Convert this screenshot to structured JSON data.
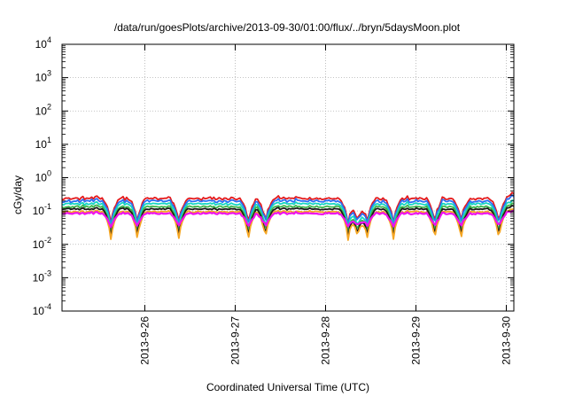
{
  "chart_data": {
    "type": "line",
    "title": "/data/run/goesPlots/archive/2013-09-30/01:00/flux/../bryn/5daysMoon.plot",
    "xlabel": "Coordinated Universal Time (UTC)",
    "ylabel": "cGy/day",
    "y_scale": "log",
    "ylim_exponents": [
      -4,
      4
    ],
    "y_tick_base": "10",
    "y_tick_exponents": [
      "-4",
      "-3",
      "-2",
      "-1",
      "0",
      "1",
      "2",
      "3",
      "4"
    ],
    "x_range_days": [
      "2013-09-25T02:00",
      "2013-09-30T02:00"
    ],
    "x_tick_labels": [
      "2013-9-26",
      "2013-9-27",
      "2013-9-28",
      "2013-9-29",
      "2013-9-30"
    ],
    "grid": true,
    "legend": "none",
    "series": [
      {
        "color": "#e41a1c",
        "base": 0.24,
        "amp": 0.3,
        "dip_depth": 0.1
      },
      {
        "color": "#2c6ef2",
        "base": 0.2,
        "amp": 0.3,
        "dip_depth": 0.12
      },
      {
        "color": "#16d6c2",
        "base": 0.165,
        "amp": 0.22,
        "dip_depth": 0.08
      },
      {
        "color": "#3cb44b",
        "base": 0.135,
        "amp": 0.18,
        "dip_depth": 0.06
      },
      {
        "color": "#1a1a1a",
        "base": 0.115,
        "amp": 0.15,
        "dip_depth": 0.05
      },
      {
        "color": "#f5a623",
        "base": 0.095,
        "amp": 0.14,
        "dip_depth": 0.05
      },
      {
        "color": "#ee11ee",
        "base": 0.085,
        "amp": 0.16,
        "dip_depth": 0.35
      }
    ],
    "dip_days": [
      "2013-09-25T15:00",
      "2013-09-25T22:00",
      "2013-09-26T09:00",
      "2013-09-27T03:30",
      "2013-09-27T08:00",
      "2013-09-28T06:00",
      "2013-09-28T08:30",
      "2013-09-28T11:00",
      "2013-09-28T18:00",
      "2013-09-29T05:00",
      "2013-09-29T12:00",
      "2013-09-29T22:00"
    ]
  }
}
